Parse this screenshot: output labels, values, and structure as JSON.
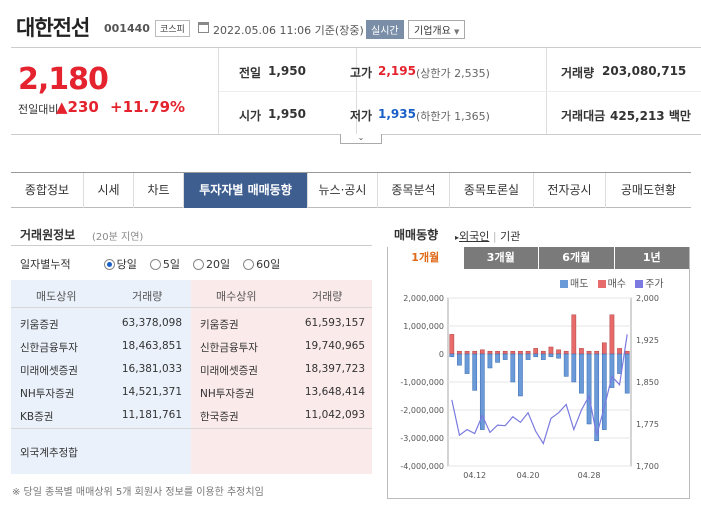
{
  "header": {
    "name": "대한전선",
    "code": "001440",
    "market": "코스피",
    "datetime": "2022.05.06 11:06 기준(장중)",
    "realtime_label": "실시간",
    "company_label": "기업개요"
  },
  "price": {
    "current": "2,180",
    "diff_label": "전일대비",
    "diff": "230",
    "rate": "+11.79%"
  },
  "stats": {
    "prev_label": "전일",
    "prev": "1,950",
    "open_label": "시가",
    "open": "1,950",
    "high_label": "고가",
    "high": "2,195",
    "upper": "(상한가 2,535)",
    "low_label": "저가",
    "low": "1,935",
    "lower": "(하한가 1,365)",
    "volume_label": "거래량",
    "volume": "203,080,715",
    "amount_label": "거래대금",
    "amount": "425,213 백만"
  },
  "tabs": [
    "종합정보",
    "시세",
    "차트",
    "투자자별 매매동향",
    "뉴스·공시",
    "종목분석",
    "종목토론실",
    "전자공시",
    "공매도현황"
  ],
  "trader": {
    "title": "거래원정보",
    "subtitle": "(20분 지연)",
    "period_label": "일자별누적",
    "options": [
      "당일",
      "5일",
      "20일",
      "60일"
    ],
    "headers": [
      "매도상위",
      "거래량",
      "매수상위",
      "거래량"
    ],
    "rows": [
      {
        "sell": "키움증권",
        "sell_vol": "63,378,098",
        "buy": "키움증권",
        "buy_vol": "61,593,157"
      },
      {
        "sell": "신한금융투자",
        "sell_vol": "18,463,851",
        "buy": "신한금융투자",
        "buy_vol": "19,740,965"
      },
      {
        "sell": "미래에셋증권",
        "sell_vol": "16,381,033",
        "buy": "미래에셋증권",
        "buy_vol": "18,397,723"
      },
      {
        "sell": "NH투자증권",
        "sell_vol": "14,521,371",
        "buy": "NH투자증권",
        "buy_vol": "13,648,414"
      },
      {
        "sell": "KB증권",
        "sell_vol": "11,181,761",
        "buy": "한국증권",
        "buy_vol": "11,042,093"
      }
    ],
    "foreign_label": "외국계추정합",
    "note": "※ 당일 종목별 매매상위 5개 회원사 정보를 이용한 추정치임"
  },
  "trend": {
    "title": "매매동향",
    "link_foreign": "외국인",
    "link_inst": "기관",
    "periods": [
      "1개월",
      "3개월",
      "6개월",
      "1년"
    ]
  },
  "chart_data": {
    "type": "bar",
    "legend": [
      "매도",
      "매수",
      "주가"
    ],
    "colors": {
      "sell": "#6a9ad8",
      "buy": "#e86b6b",
      "price": "#7a7ae0"
    },
    "x_ticks": [
      "04.12",
      "04.20",
      "04.28"
    ],
    "y_left_ticks": [
      "2,000,000",
      "1,000,000",
      "0",
      "-1,000,000",
      "-2,000,000",
      "-3,000,000",
      "-4,000,000"
    ],
    "y_left_range": [
      -4000000,
      2000000
    ],
    "y_right_ticks": [
      "2,000",
      "1,925",
      "1,850",
      "1,775",
      "1,700"
    ],
    "y_right_range": [
      1700,
      2000
    ],
    "sell": [
      -100000,
      -400000,
      -700000,
      -1300000,
      -2700000,
      -500000,
      -300000,
      -200000,
      -1000000,
      -1500000,
      -200000,
      -100000,
      -200000,
      -100000,
      -150000,
      -800000,
      -1000000,
      -1400000,
      -2500000,
      -3100000,
      -2700000,
      -1200000,
      -700000,
      -1400000
    ],
    "buy": [
      700000,
      100000,
      100000,
      100000,
      150000,
      100000,
      100000,
      100000,
      100000,
      100000,
      100000,
      200000,
      100000,
      250000,
      150000,
      100000,
      1400000,
      200000,
      100000,
      100000,
      400000,
      1400000,
      200000,
      100000
    ],
    "price": [
      1818,
      1755,
      1765,
      1758,
      1790,
      1760,
      1773,
      1772,
      1788,
      1778,
      1795,
      1762,
      1740,
      1785,
      1795,
      1810,
      1765,
      1800,
      1825,
      1755,
      1805,
      1860,
      1845,
      1935
    ]
  }
}
